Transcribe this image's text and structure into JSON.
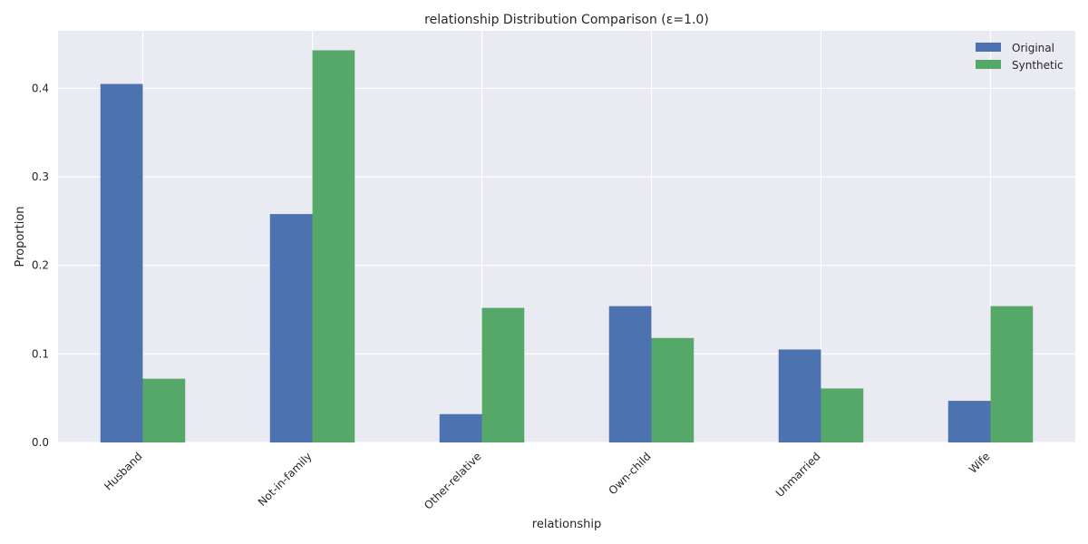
{
  "chart_data": {
    "type": "bar",
    "title": "relationship Distribution Comparison (ε=1.0)",
    "xlabel": "relationship",
    "ylabel": "Proportion",
    "categories": [
      "Husband",
      "Not-in-family",
      "Other-relative",
      "Own-child",
      "Unmarried",
      "Wife"
    ],
    "series": [
      {
        "name": "Original",
        "color": "#4c72b0",
        "values": [
          0.405,
          0.258,
          0.032,
          0.154,
          0.105,
          0.047
        ]
      },
      {
        "name": "Synthetic",
        "color": "#55a868",
        "values": [
          0.072,
          0.443,
          0.152,
          0.118,
          0.061,
          0.154
        ]
      }
    ],
    "ylim": [
      0,
      0.465
    ],
    "yticks": [
      0.0,
      0.1,
      0.2,
      0.3,
      0.4
    ],
    "ytick_labels": [
      "0.0",
      "0.1",
      "0.2",
      "0.3",
      "0.4"
    ],
    "grid": true,
    "legend_position": "top-right",
    "background_color": "#eaeaf2",
    "grid_color": "#ffffff"
  }
}
